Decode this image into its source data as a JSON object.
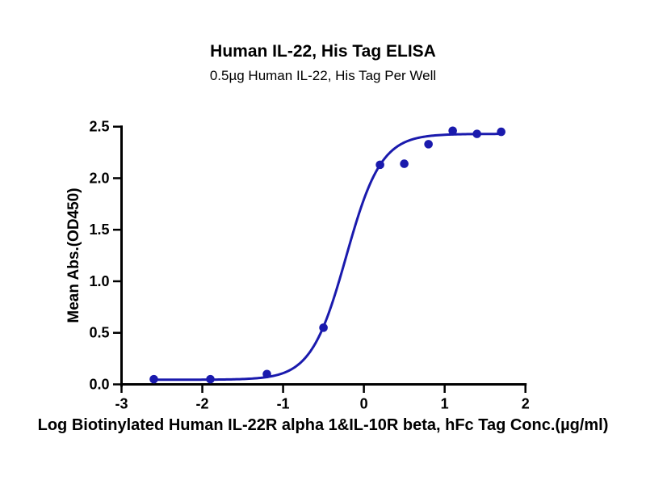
{
  "chart_data": {
    "type": "scatter",
    "title": "Human IL-22, His Tag ELISA",
    "subtitle": "0.5µg Human IL-22, His Tag Per Well",
    "xlabel": "Log Biotinylated Human IL-22R alpha 1&IL-10R beta, hFc Tag Conc.(µg/ml)",
    "ylabel": "Mean Abs.(OD450)",
    "xlim": [
      -3,
      2
    ],
    "ylim": [
      0,
      2.5
    ],
    "x_ticks": [
      "-3",
      "-2",
      "-1",
      "0",
      "1",
      "2"
    ],
    "y_ticks": [
      "0.0",
      "0.5",
      "1.0",
      "1.5",
      "2.0",
      "2.5"
    ],
    "grid": false,
    "legend": "none",
    "series": [
      {
        "name": "Human IL-22, His Tag",
        "color": "#1a1aad",
        "x": [
          -2.6,
          -1.9,
          -1.2,
          -0.5,
          0.2,
          0.5,
          0.8,
          1.1,
          1.4,
          1.7
        ],
        "y": [
          0.05,
          0.05,
          0.1,
          0.55,
          2.13,
          2.14,
          2.33,
          2.46,
          2.43,
          2.45
        ]
      }
    ],
    "curve_fit": {
      "model": "4PL sigmoid",
      "bottom": 0.045,
      "top": 2.43,
      "log_ec50": -0.22,
      "hill_slope": 2.0,
      "x_start": -2.6,
      "x_end": 1.72
    },
    "axis_color": "#000000"
  }
}
